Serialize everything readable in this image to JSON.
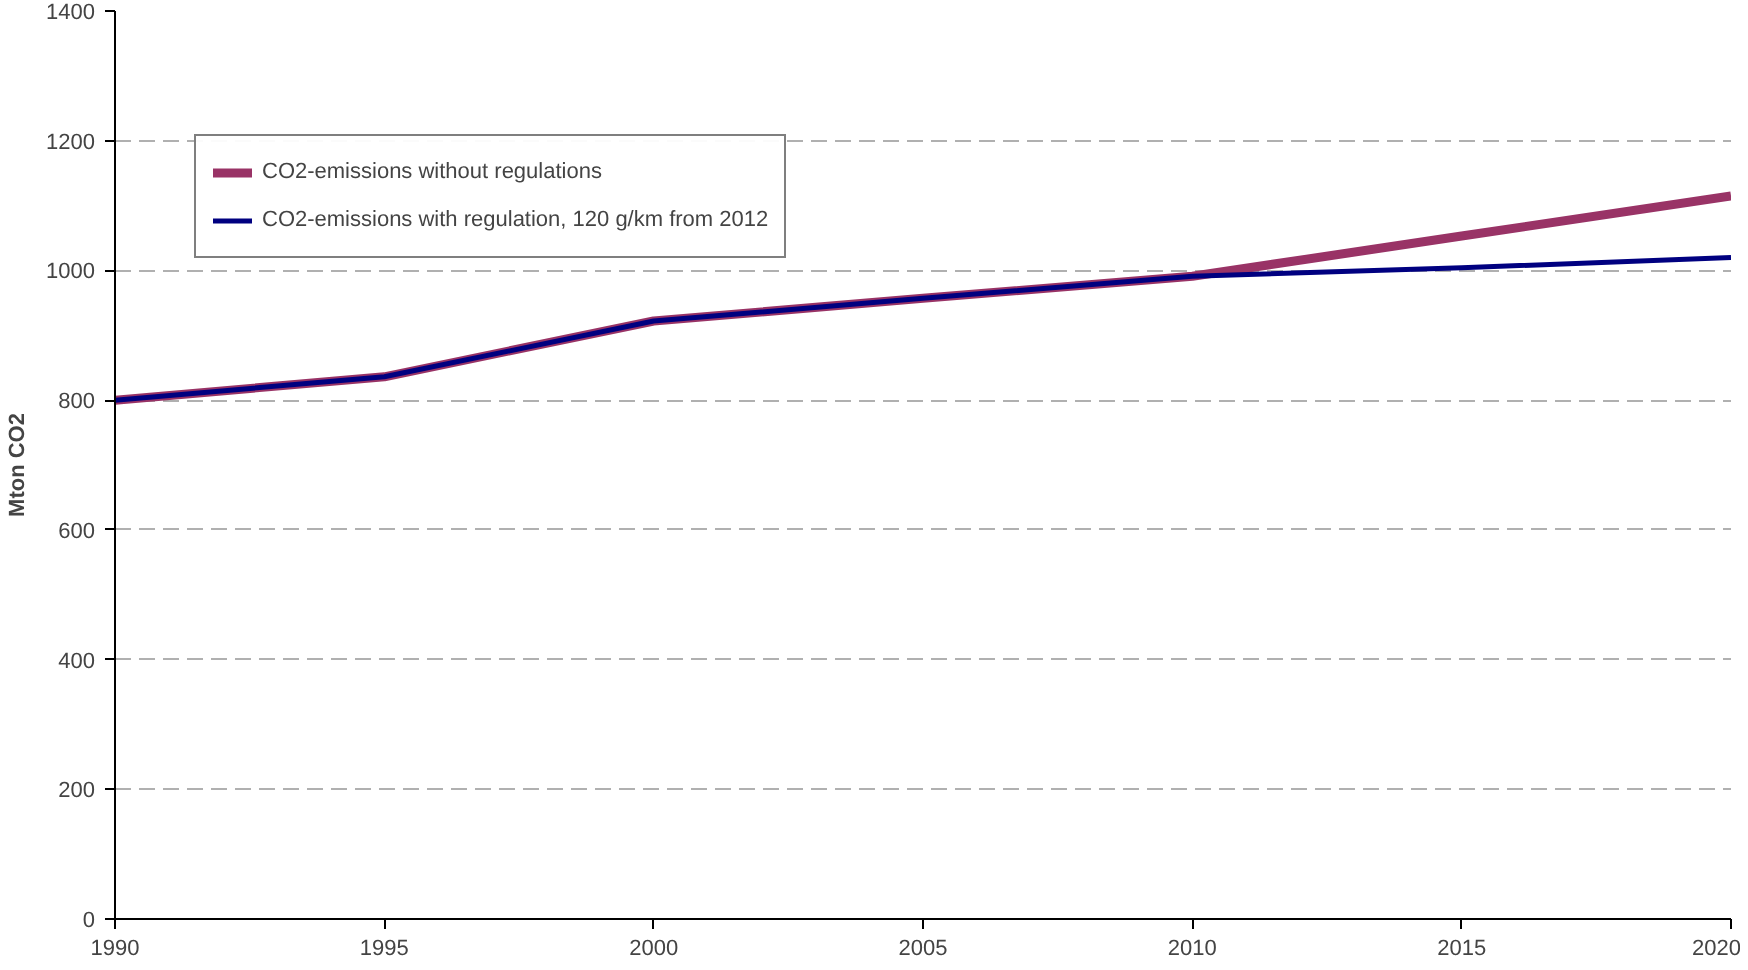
{
  "chart_data": {
    "type": "line",
    "ylabel": "Mton CO2",
    "x": [
      1990,
      1995,
      2000,
      2005,
      2010,
      2015,
      2020
    ],
    "series": [
      {
        "name": "CO2-emissions without regulations",
        "color": "#993366",
        "values": [
          800,
          836,
          922,
          957,
          991,
          1053,
          1115
        ]
      },
      {
        "name": "CO2-emissions with regulation, 120 g/km from 2012",
        "color": "#000080",
        "values": [
          800,
          836,
          922,
          957,
          991,
          1004,
          1020
        ]
      }
    ],
    "xlim": [
      1990,
      2020
    ],
    "xticks": [
      1990,
      1995,
      2000,
      2005,
      2010,
      2015,
      2020
    ],
    "ylim": [
      0,
      1400
    ],
    "yticks": [
      0,
      200,
      400,
      600,
      800,
      1000,
      1200,
      1400
    ],
    "grid": "y",
    "legend": "top left",
    "marker": "none",
    "line_style": "solid"
  }
}
